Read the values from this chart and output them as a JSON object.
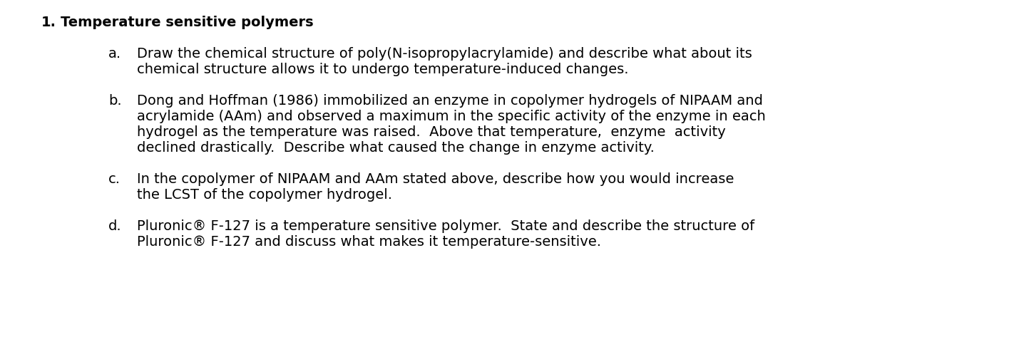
{
  "background_color": "#ffffff",
  "title_number": "1.",
  "title_text": "Temperature sensitive polymers",
  "title_fontsize": 14,
  "items": [
    {
      "label": "a.",
      "lines": [
        "Draw the chemical structure of poly(N-isopropylacrylamide) and describe what about its",
        "chemical structure allows it to undergo temperature-induced changes."
      ]
    },
    {
      "label": "b.",
      "lines": [
        "Dong and Hoffman (1986) immobilized an enzyme in copolymer hydrogels of NIPAAM and",
        "acrylamide (AAm) and observed a maximum in the specific activity of the enzyme in each",
        "hydrogel as the temperature was raised.  Above that temperature,  enzyme  activity",
        "declined drastically.  Describe what caused the change in enzyme activity."
      ]
    },
    {
      "label": "c.",
      "lines": [
        "In the copolymer of NIPAAM and AAm stated above, describe how you would increase",
        "the LCST of the copolymer hydrogel."
      ]
    },
    {
      "label": "d.",
      "lines": [
        "Pluronic® F-127 is a temperature sensitive polymer.  State and describe the structure of",
        "Pluronic® F-127 and discuss what makes it temperature-sensitive."
      ]
    }
  ],
  "text_color": "#000000",
  "body_fontsize": 14,
  "font_family": "DejaVu Sans",
  "fig_width": 14.22,
  "fig_height": 4.94,
  "dpi": 100
}
